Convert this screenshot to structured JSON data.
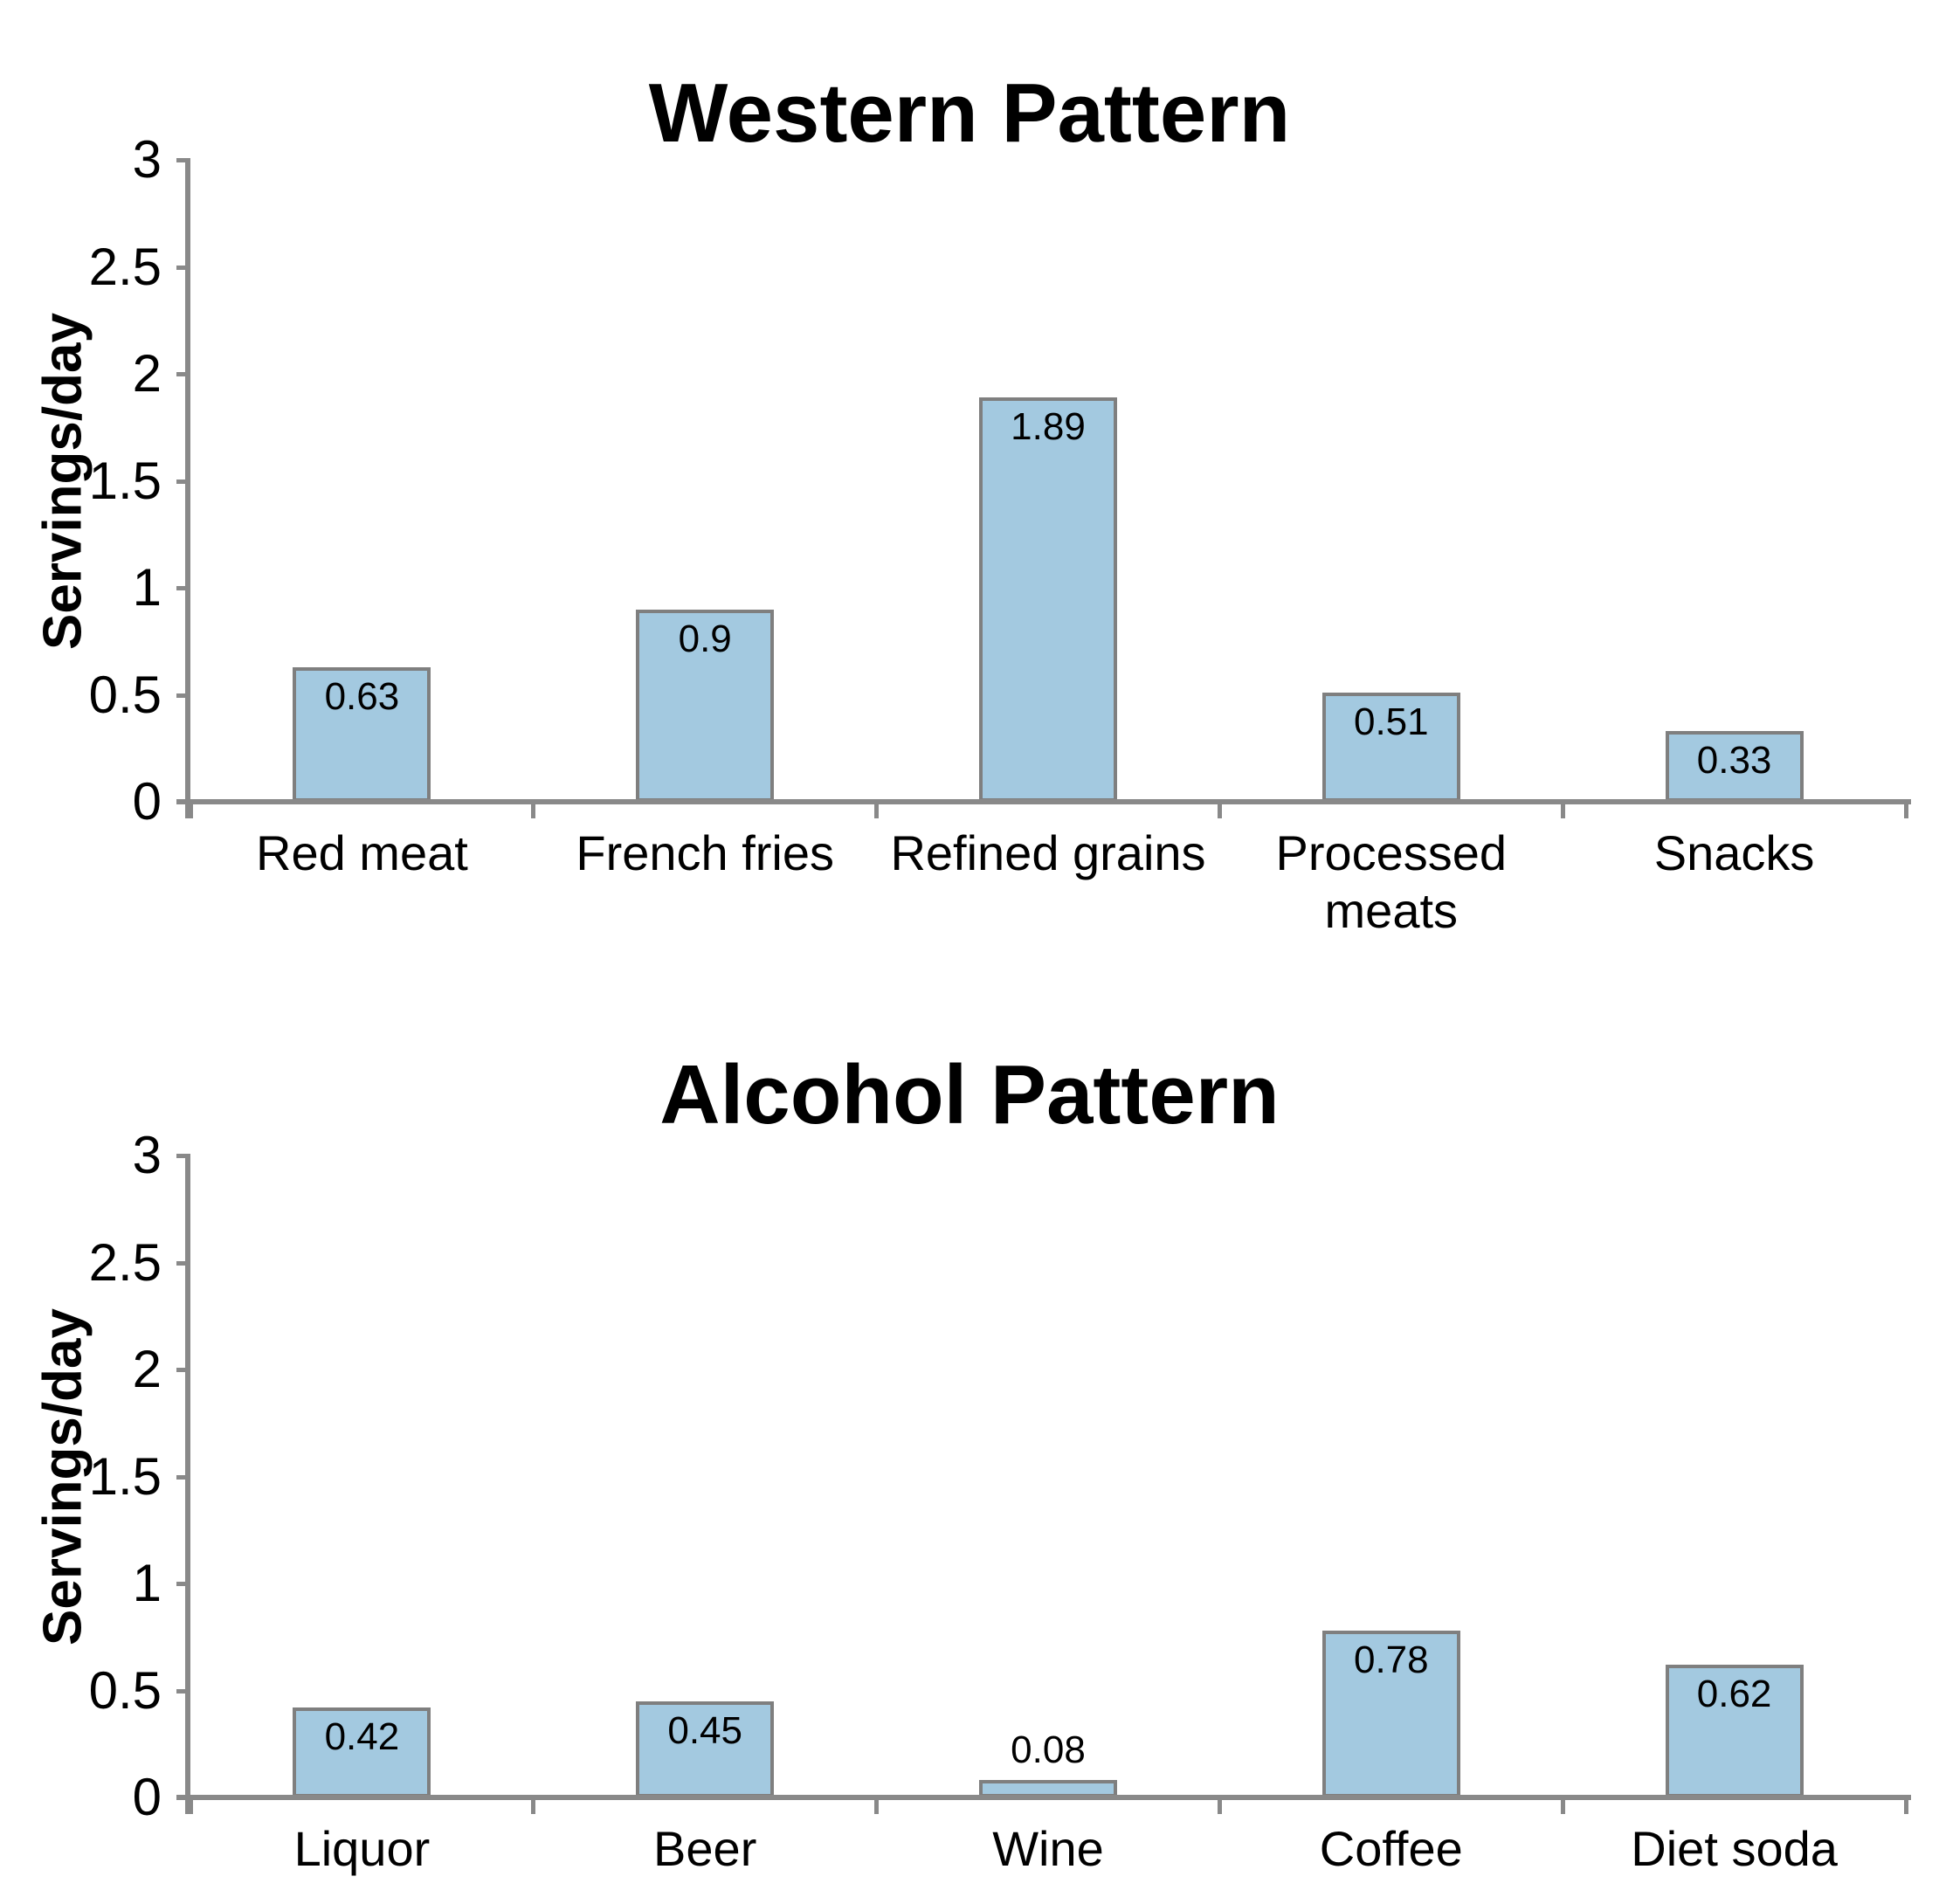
{
  "page": {
    "background": "#FFFFFF"
  },
  "styles": {
    "bar_fill": "#A3C9E0",
    "bar_border": "#7F7F7F",
    "axis_color": "#898989",
    "text_color": "#000000"
  },
  "chart_data": [
    {
      "type": "bar",
      "title": "Western Pattern",
      "ylabel": "Servings/day",
      "xlabel": "",
      "categories": [
        "Red meat",
        "French fries",
        "Refined grains",
        "Processed\nmeats",
        "Snacks"
      ],
      "values": [
        0.63,
        0.9,
        1.89,
        0.51,
        0.33
      ],
      "value_labels": [
        "0.63",
        "0.9",
        "1.89",
        "0.51",
        "0.33"
      ],
      "ylim": [
        0,
        3
      ],
      "yticks": [
        0,
        0.5,
        1,
        1.5,
        2,
        2.5,
        3
      ],
      "ytick_labels": [
        "0",
        "0.5",
        "1",
        "1.5",
        "2",
        "2.5",
        "3"
      ],
      "grid": false,
      "legend": null
    },
    {
      "type": "bar",
      "title": "Alcohol Pattern",
      "ylabel": "Servings/day",
      "xlabel": "",
      "categories": [
        "Liquor",
        "Beer",
        "Wine",
        "Coffee",
        "Diet soda"
      ],
      "values": [
        0.42,
        0.45,
        0.08,
        0.78,
        0.62
      ],
      "value_labels": [
        "0.42",
        "0.45",
        "0.08",
        "0.78",
        "0.62"
      ],
      "ylim": [
        0,
        3
      ],
      "yticks": [
        0,
        0.5,
        1,
        1.5,
        2,
        2.5,
        3
      ],
      "ytick_labels": [
        "0",
        "0.5",
        "1",
        "1.5",
        "2",
        "2.5",
        "3"
      ],
      "grid": false,
      "legend": null
    }
  ]
}
